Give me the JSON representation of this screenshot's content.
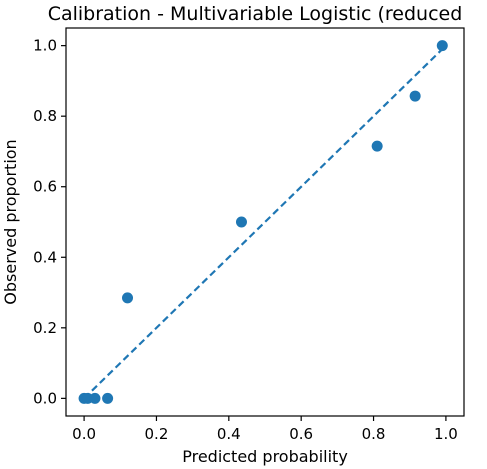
{
  "chart_data": {
    "type": "scatter",
    "title": "Calibration - Multivariable Logistic (reduced",
    "xlabel": "Predicted probability",
    "ylabel": "Observed proportion",
    "xlim": [
      -0.05,
      1.05
    ],
    "ylim": [
      -0.05,
      1.05
    ],
    "x_ticks": [
      0.0,
      0.2,
      0.4,
      0.6,
      0.8,
      1.0
    ],
    "y_ticks": [
      0.0,
      0.2,
      0.4,
      0.6,
      0.8,
      1.0
    ],
    "x_tick_labels": [
      "0.0",
      "0.2",
      "0.4",
      "0.6",
      "0.8",
      "1.0"
    ],
    "y_tick_labels": [
      "0.0",
      "0.2",
      "0.4",
      "0.6",
      "0.8",
      "1.0"
    ],
    "grid": false,
    "series": [
      {
        "kind": "points",
        "color": "#1f77b4",
        "points": [
          {
            "x": 0.0,
            "y": 0.0
          },
          {
            "x": 0.01,
            "y": 0.0
          },
          {
            "x": 0.03,
            "y": 0.0
          },
          {
            "x": 0.065,
            "y": 0.0
          },
          {
            "x": 0.12,
            "y": 0.285
          },
          {
            "x": 0.435,
            "y": 0.5
          },
          {
            "x": 0.81,
            "y": 0.715
          },
          {
            "x": 0.915,
            "y": 0.857
          },
          {
            "x": 0.99,
            "y": 1.0
          }
        ]
      },
      {
        "kind": "dashed-line",
        "color": "#1f77b4",
        "points": [
          {
            "x": 0.0,
            "y": 0.0
          },
          {
            "x": 1.0,
            "y": 1.0
          }
        ]
      }
    ]
  }
}
